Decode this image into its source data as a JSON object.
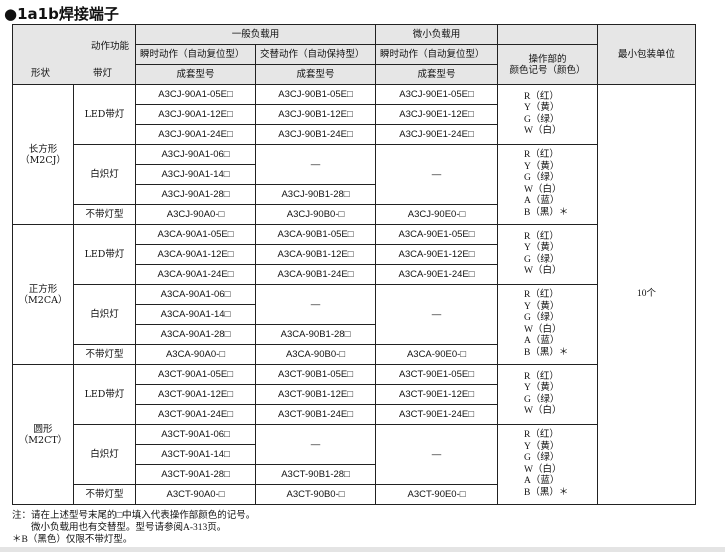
{
  "title": "●1a1b焊接端子",
  "header": {
    "action_function": "动作功能",
    "shape": "形状",
    "lamp": "带灯",
    "general_load": "一般负载用",
    "micro_load": "微小负载用",
    "momentary": "瞬时动作（自动复位型）",
    "alternate": "交替动作（自动保持型）",
    "momentary2": "瞬时动作（自动复位型）",
    "set_model": "成套型号",
    "color_code_1": "操作部的",
    "color_code_2": "颜色记号（颜色）",
    "min_pack": "最小包装单位"
  },
  "lamp_types": {
    "led": "LED带灯",
    "incandescent": "白炽灯",
    "none": "不带灯型"
  },
  "dash": "—",
  "colors_led": [
    "R（红）",
    "Y（黄）",
    "G（绿）",
    "W（白）"
  ],
  "colors_all": [
    "R（红）",
    "Y（黄）",
    "G（绿）",
    "W（白）",
    "A（蓝）",
    "B（黑）＊"
  ],
  "pack": "10个",
  "groups": [
    {
      "shape": "长方形",
      "code": "（M2CJ）",
      "led": [
        [
          "A3CJ-90A1-05E□",
          "A3CJ-90B1-05E□",
          "A3CJ-90E1-05E□"
        ],
        [
          "A3CJ-90A1-12E□",
          "A3CJ-90B1-12E□",
          "A3CJ-90E1-12E□"
        ],
        [
          "A3CJ-90A1-24E□",
          "A3CJ-90B1-24E□",
          "A3CJ-90E1-24E□"
        ]
      ],
      "inc": [
        "A3CJ-90A1-06□",
        "A3CJ-90A1-14□",
        "A3CJ-90A1-28□"
      ],
      "inc_alt": "A3CJ-90B1-28□",
      "none": [
        "A3CJ-90A0-□",
        "A3CJ-90B0-□",
        "A3CJ-90E0-□"
      ]
    },
    {
      "shape": "正方形",
      "code": "（M2CA）",
      "led": [
        [
          "A3CA-90A1-05E□",
          "A3CA-90B1-05E□",
          "A3CA-90E1-05E□"
        ],
        [
          "A3CA-90A1-12E□",
          "A3CA-90B1-12E□",
          "A3CA-90E1-12E□"
        ],
        [
          "A3CA-90A1-24E□",
          "A3CA-90B1-24E□",
          "A3CA-90E1-24E□"
        ]
      ],
      "inc": [
        "A3CA-90A1-06□",
        "A3CA-90A1-14□",
        "A3CA-90A1-28□"
      ],
      "inc_alt": "A3CA-90B1-28□",
      "none": [
        "A3CA-90A0-□",
        "A3CA-90B0-□",
        "A3CA-90E0-□"
      ]
    },
    {
      "shape": "圆形",
      "code": "（M2CT）",
      "led": [
        [
          "A3CT-90A1-05E□",
          "A3CT-90B1-05E□",
          "A3CT-90E1-05E□"
        ],
        [
          "A3CT-90A1-12E□",
          "A3CT-90B1-12E□",
          "A3CT-90E1-12E□"
        ],
        [
          "A3CT-90A1-24E□",
          "A3CT-90B1-24E□",
          "A3CT-90E1-24E□"
        ]
      ],
      "inc": [
        "A3CT-90A1-06□",
        "A3CT-90A1-14□",
        "A3CT-90A1-28□"
      ],
      "inc_alt": "A3CT-90B1-28□",
      "none": [
        "A3CT-90A0-□",
        "A3CT-90B0-□",
        "A3CT-90E0-□"
      ]
    }
  ],
  "notes": [
    "注：请在上述型号末尾的□中填入代表操作部颜色的记号。",
    "　　微小负载用也有交替型。型号请参阅A-313页。",
    "＊B（黑色）仅限不带灯型。"
  ]
}
